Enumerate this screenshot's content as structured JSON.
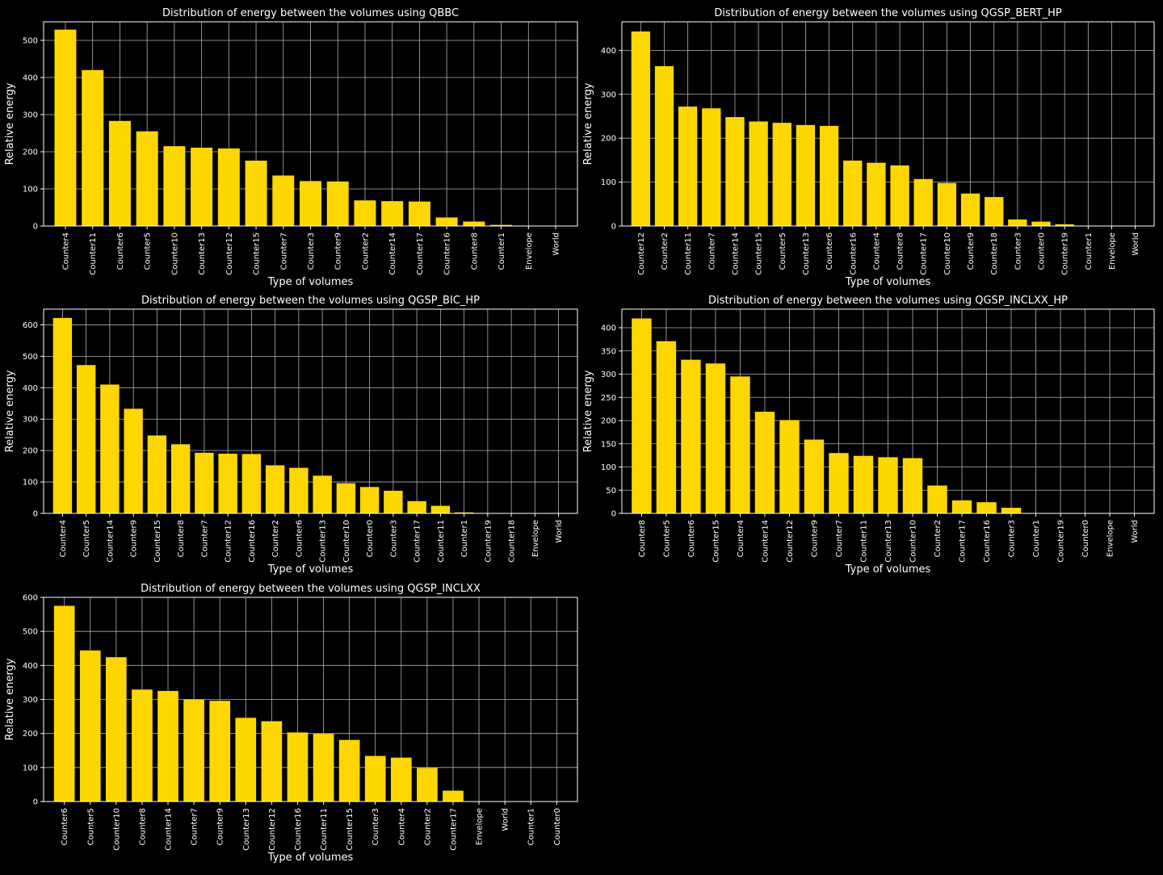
{
  "colors": {
    "background": "#000000",
    "bar": "#FFD700",
    "text": "#ffffff",
    "grid": "#b0b0b0"
  },
  "chart_data": [
    {
      "type": "bar",
      "title": "Distribution of energy between the volumes using QBBC",
      "xlabel": "Type of volumes",
      "ylabel": "Relative energy",
      "categories": [
        "Counter4",
        "Counter11",
        "Counter6",
        "Counter5",
        "Counter10",
        "Counter13",
        "Counter12",
        "Counter15",
        "Counter7",
        "Counter3",
        "Counter9",
        "Counter2",
        "Counter14",
        "Counter17",
        "Counter16",
        "Counter8",
        "Counter1",
        "Envelope",
        "World"
      ],
      "values": [
        529,
        420,
        283,
        255,
        215,
        211,
        209,
        176,
        136,
        121,
        120,
        69,
        67,
        66,
        23,
        12,
        3,
        0,
        0
      ],
      "ylim": [
        0,
        550
      ],
      "yticks": [
        0,
        100,
        200,
        300,
        400,
        500
      ],
      "grid": true
    },
    {
      "type": "bar",
      "title": "Distribution of energy between the volumes using QGSP_BERT_HP",
      "xlabel": "Type of volumes",
      "ylabel": "Relative energy",
      "categories": [
        "Counter12",
        "Counter2",
        "Counter11",
        "Counter7",
        "Counter14",
        "Counter15",
        "Counter5",
        "Counter13",
        "Counter6",
        "Counter16",
        "Counter4",
        "Counter8",
        "Counter17",
        "Counter10",
        "Counter9",
        "Counter18",
        "Counter3",
        "Counter0",
        "Counter19",
        "Counter1",
        "Envelope",
        "World"
      ],
      "values": [
        443,
        364,
        272,
        268,
        248,
        238,
        235,
        230,
        228,
        149,
        144,
        138,
        107,
        98,
        74,
        66,
        15,
        10,
        4,
        0,
        0,
        0
      ],
      "ylim": [
        0,
        465
      ],
      "yticks": [
        0,
        100,
        200,
        300,
        400
      ],
      "grid": true
    },
    {
      "type": "bar",
      "title": "Distribution of energy between the volumes using QGSP_BIC_HP",
      "xlabel": "Type of volumes",
      "ylabel": "Relative energy",
      "categories": [
        "Counter4",
        "Counter5",
        "Counter14",
        "Counter9",
        "Counter15",
        "Counter8",
        "Counter7",
        "Counter12",
        "Counter16",
        "Counter2",
        "Counter6",
        "Counter13",
        "Counter10",
        "Counter0",
        "Counter3",
        "Counter17",
        "Counter11",
        "Counter1",
        "Counter19",
        "Counter18",
        "Envelope",
        "World"
      ],
      "values": [
        622,
        472,
        410,
        333,
        248,
        220,
        193,
        190,
        189,
        153,
        145,
        120,
        96,
        84,
        72,
        39,
        24,
        3,
        0,
        0,
        0,
        0
      ],
      "ylim": [
        0,
        650
      ],
      "yticks": [
        0,
        100,
        200,
        300,
        400,
        500,
        600
      ],
      "grid": true
    },
    {
      "type": "bar",
      "title": "Distribution of energy between the volumes using QGSP_INCLXX_HP",
      "xlabel": "Type of volumes",
      "ylabel": "Relative energy",
      "categories": [
        "Counter8",
        "Counter5",
        "Counter6",
        "Counter15",
        "Counter4",
        "Counter14",
        "Counter12",
        "Counter9",
        "Counter7",
        "Counter11",
        "Counter13",
        "Counter10",
        "Counter2",
        "Counter17",
        "Counter16",
        "Counter3",
        "Counter1",
        "Counter19",
        "Counter0",
        "Envelope",
        "World"
      ],
      "values": [
        420,
        371,
        331,
        323,
        295,
        219,
        201,
        159,
        130,
        124,
        121,
        119,
        60,
        28,
        24,
        12,
        0,
        0,
        0,
        0,
        0
      ],
      "ylim": [
        0,
        440
      ],
      "yticks": [
        0,
        50,
        100,
        150,
        200,
        250,
        300,
        350,
        400
      ],
      "grid": true
    },
    {
      "type": "bar",
      "title": "Distribution of energy between the volumes using QGSP_INCLXX",
      "xlabel": "Type of volumes",
      "ylabel": "Relative energy",
      "categories": [
        "Counter6",
        "Counter5",
        "Counter10",
        "Counter8",
        "Counter14",
        "Counter7",
        "Counter9",
        "Counter13",
        "Counter12",
        "Counter16",
        "Counter11",
        "Counter15",
        "Counter3",
        "Counter4",
        "Counter2",
        "Counter17",
        "Envelope",
        "World",
        "Counter1",
        "Counter0"
      ],
      "values": [
        575,
        444,
        424,
        329,
        325,
        300,
        296,
        246,
        236,
        203,
        199,
        181,
        134,
        129,
        99,
        32,
        0,
        0,
        0,
        0
      ],
      "ylim": [
        0,
        600
      ],
      "yticks": [
        0,
        100,
        200,
        300,
        400,
        500,
        600
      ],
      "grid": true
    }
  ]
}
